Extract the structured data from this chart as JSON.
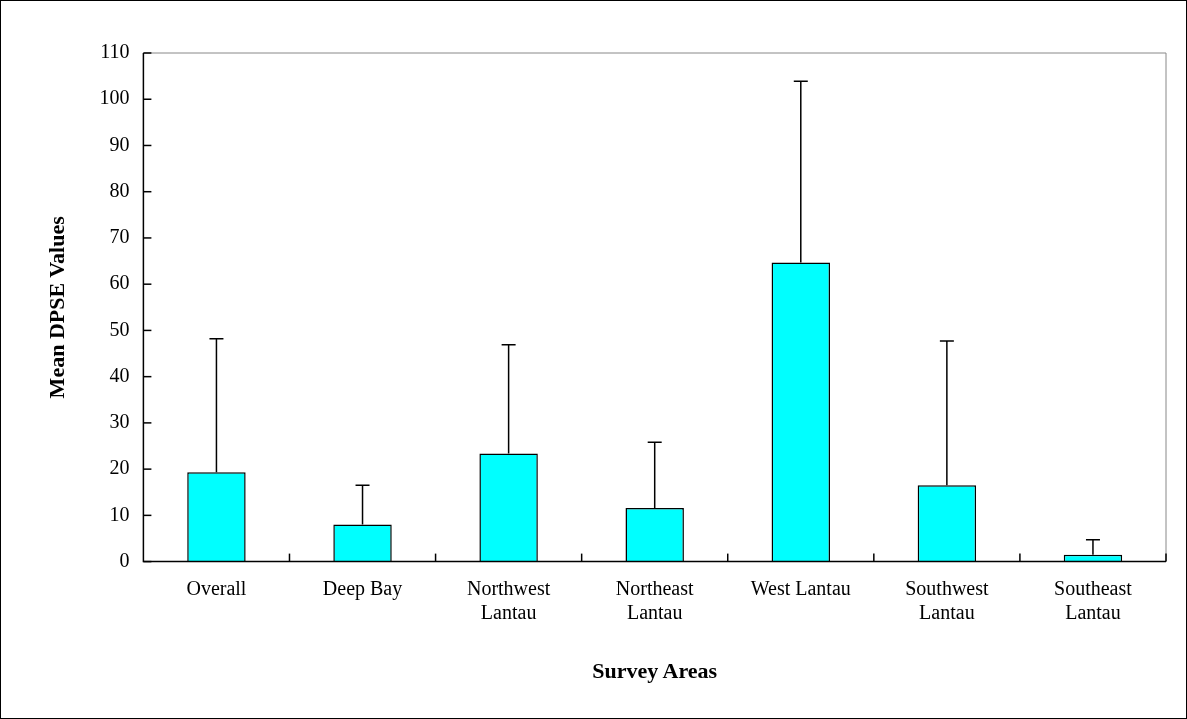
{
  "chart_data": {
    "type": "bar",
    "xlabel": "Survey Areas",
    "ylabel": "Mean DPSE Values",
    "categories": [
      "Overall",
      "Deep Bay",
      "Northwest Lantau",
      "Northeast Lantau",
      "West Lantau",
      "Southwest Lantau",
      "Southeast Lantau"
    ],
    "values": [
      19.3,
      8.0,
      23.4,
      11.6,
      64.7,
      16.5,
      1.5
    ],
    "errors": [
      [
        19.3,
        48.2
      ],
      [
        8.0,
        16.5
      ],
      [
        23.4,
        46.9
      ],
      [
        11.6,
        25.8
      ],
      [
        64.7,
        103.9
      ],
      [
        16.5,
        47.7
      ],
      [
        1.5,
        4.7
      ]
    ],
    "color": "#00ffff",
    "ylim": [
      0,
      110
    ],
    "yticks": [
      0,
      10,
      20,
      30,
      40,
      50,
      60,
      70,
      80,
      90,
      100,
      110
    ],
    "grid": false,
    "legend": false
  }
}
